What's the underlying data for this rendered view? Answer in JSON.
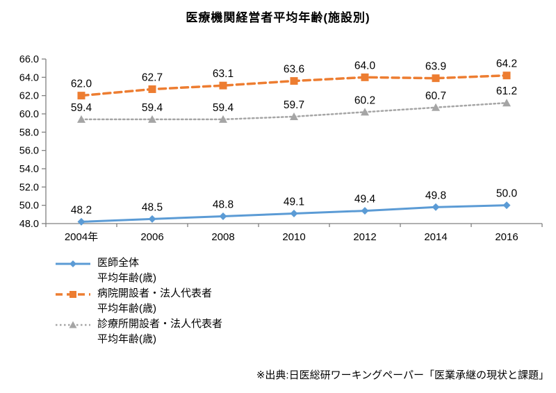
{
  "title": "医療機関経営者平均年齢(施設別)",
  "source": "※出典:日医総研ワーキングペーパー「医業承継の現状と課題」",
  "chart_data": {
    "type": "line",
    "title": "医療機関経営者平均年齢(施設別)",
    "xlabel": "",
    "ylabel": "",
    "categories": [
      "2004年",
      "2006",
      "2008",
      "2010",
      "2012",
      "2014",
      "2016"
    ],
    "series": [
      {
        "name": "医師全体",
        "name_line2": "平均年齢(歳)",
        "values": [
          48.2,
          48.5,
          48.8,
          49.1,
          49.4,
          49.8,
          50.0
        ],
        "color": "#5B9BD5",
        "marker": "diamond",
        "line_style": "solid",
        "line_width": 3
      },
      {
        "name": "病院開設者・法人代表者",
        "name_line2": "平均年齢(歳)",
        "values": [
          62.0,
          62.7,
          63.1,
          63.6,
          64.0,
          63.9,
          64.2
        ],
        "color": "#ED7D31",
        "marker": "square",
        "line_style": "dashed",
        "line_width": 3.5
      },
      {
        "name": "診療所開設者・法人代表者",
        "name_line2": "平均年齢(歳)",
        "values": [
          59.4,
          59.4,
          59.4,
          59.7,
          60.2,
          60.7,
          61.2
        ],
        "color": "#A5A5A5",
        "marker": "triangle",
        "line_style": "dotted",
        "line_width": 2.5
      }
    ],
    "ylim": [
      48.0,
      66.0
    ],
    "ytick_step": 2.0,
    "ytick_labels": [
      "66.0",
      "64.0",
      "62.0",
      "60.0",
      "58.0",
      "56.0",
      "54.0",
      "52.0",
      "50.0",
      "48.0"
    ],
    "grid": false,
    "legend_position": "bottom-left",
    "axis_color": "#808080",
    "label_color": "#000000",
    "data_label_decimals": 1
  }
}
